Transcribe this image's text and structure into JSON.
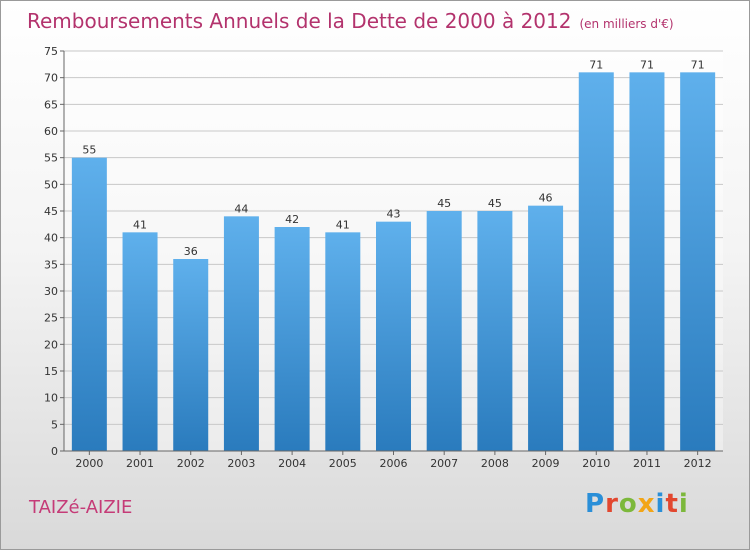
{
  "chart_data": {
    "type": "bar",
    "title": "Remboursements Annuels de la Dette de 2000 à 2012",
    "unit": "(en milliers d'€)",
    "categories": [
      "2000",
      "2001",
      "2002",
      "2003",
      "2004",
      "2005",
      "2006",
      "2007",
      "2008",
      "2009",
      "2010",
      "2011",
      "2012"
    ],
    "values": [
      55,
      41,
      36,
      44,
      42,
      41,
      43,
      45,
      45,
      46,
      71,
      71,
      71
    ],
    "ylim": [
      0,
      75
    ],
    "yticks": [
      0,
      5,
      10,
      15,
      20,
      25,
      30,
      35,
      40,
      45,
      50,
      55,
      60,
      65,
      70,
      75
    ],
    "grid": true,
    "xlabel": "",
    "ylabel": ""
  },
  "footer": {
    "commune": "TAIZé-AIZIE",
    "brand": "Proxiti"
  },
  "colors": {
    "title": "#b3336d",
    "bar_top": "#5fb0ec",
    "bar_bottom": "#2a7bbd",
    "grid": "#c8c8c8"
  }
}
